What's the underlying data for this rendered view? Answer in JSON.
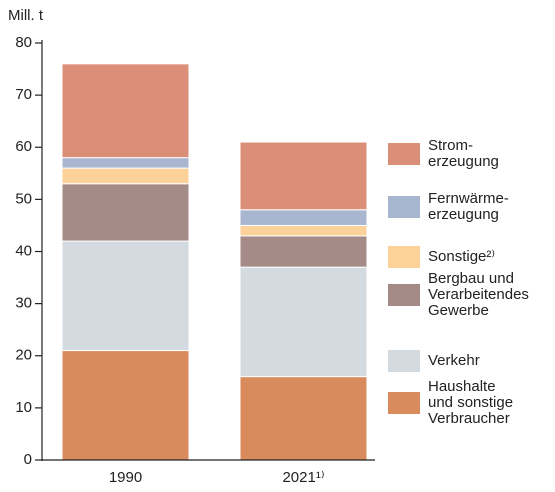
{
  "chart_data": {
    "type": "stacked_bar",
    "y_axis_label": "Mill. t",
    "categories": [
      "1990",
      "2021¹⁾"
    ],
    "series": [
      {
        "name": "Haushalte\nund sonstige\nVerbraucher",
        "color": "#d98b5d",
        "values": [
          21,
          16
        ]
      },
      {
        "name": "Verkehr",
        "color": "#d3dae0",
        "values": [
          21,
          21
        ]
      },
      {
        "name": "Bergbau und\nVerarbeitendes\nGewerbe",
        "color": "#a58b87",
        "values": [
          11,
          6
        ]
      },
      {
        "name": "Sonstige²⁾",
        "color": "#fdd19a",
        "values": [
          3,
          2
        ]
      },
      {
        "name": "Fernwärme-\nerzeugung",
        "color": "#a9b6cf",
        "values": [
          2,
          3
        ]
      },
      {
        "name": "Strom-\nerzeugung",
        "color": "#dc8f78",
        "values": [
          18,
          13
        ]
      }
    ],
    "ylim": [
      0,
      80
    ],
    "yticks": [
      0,
      10,
      20,
      30,
      40,
      50,
      60,
      70,
      80
    ]
  }
}
